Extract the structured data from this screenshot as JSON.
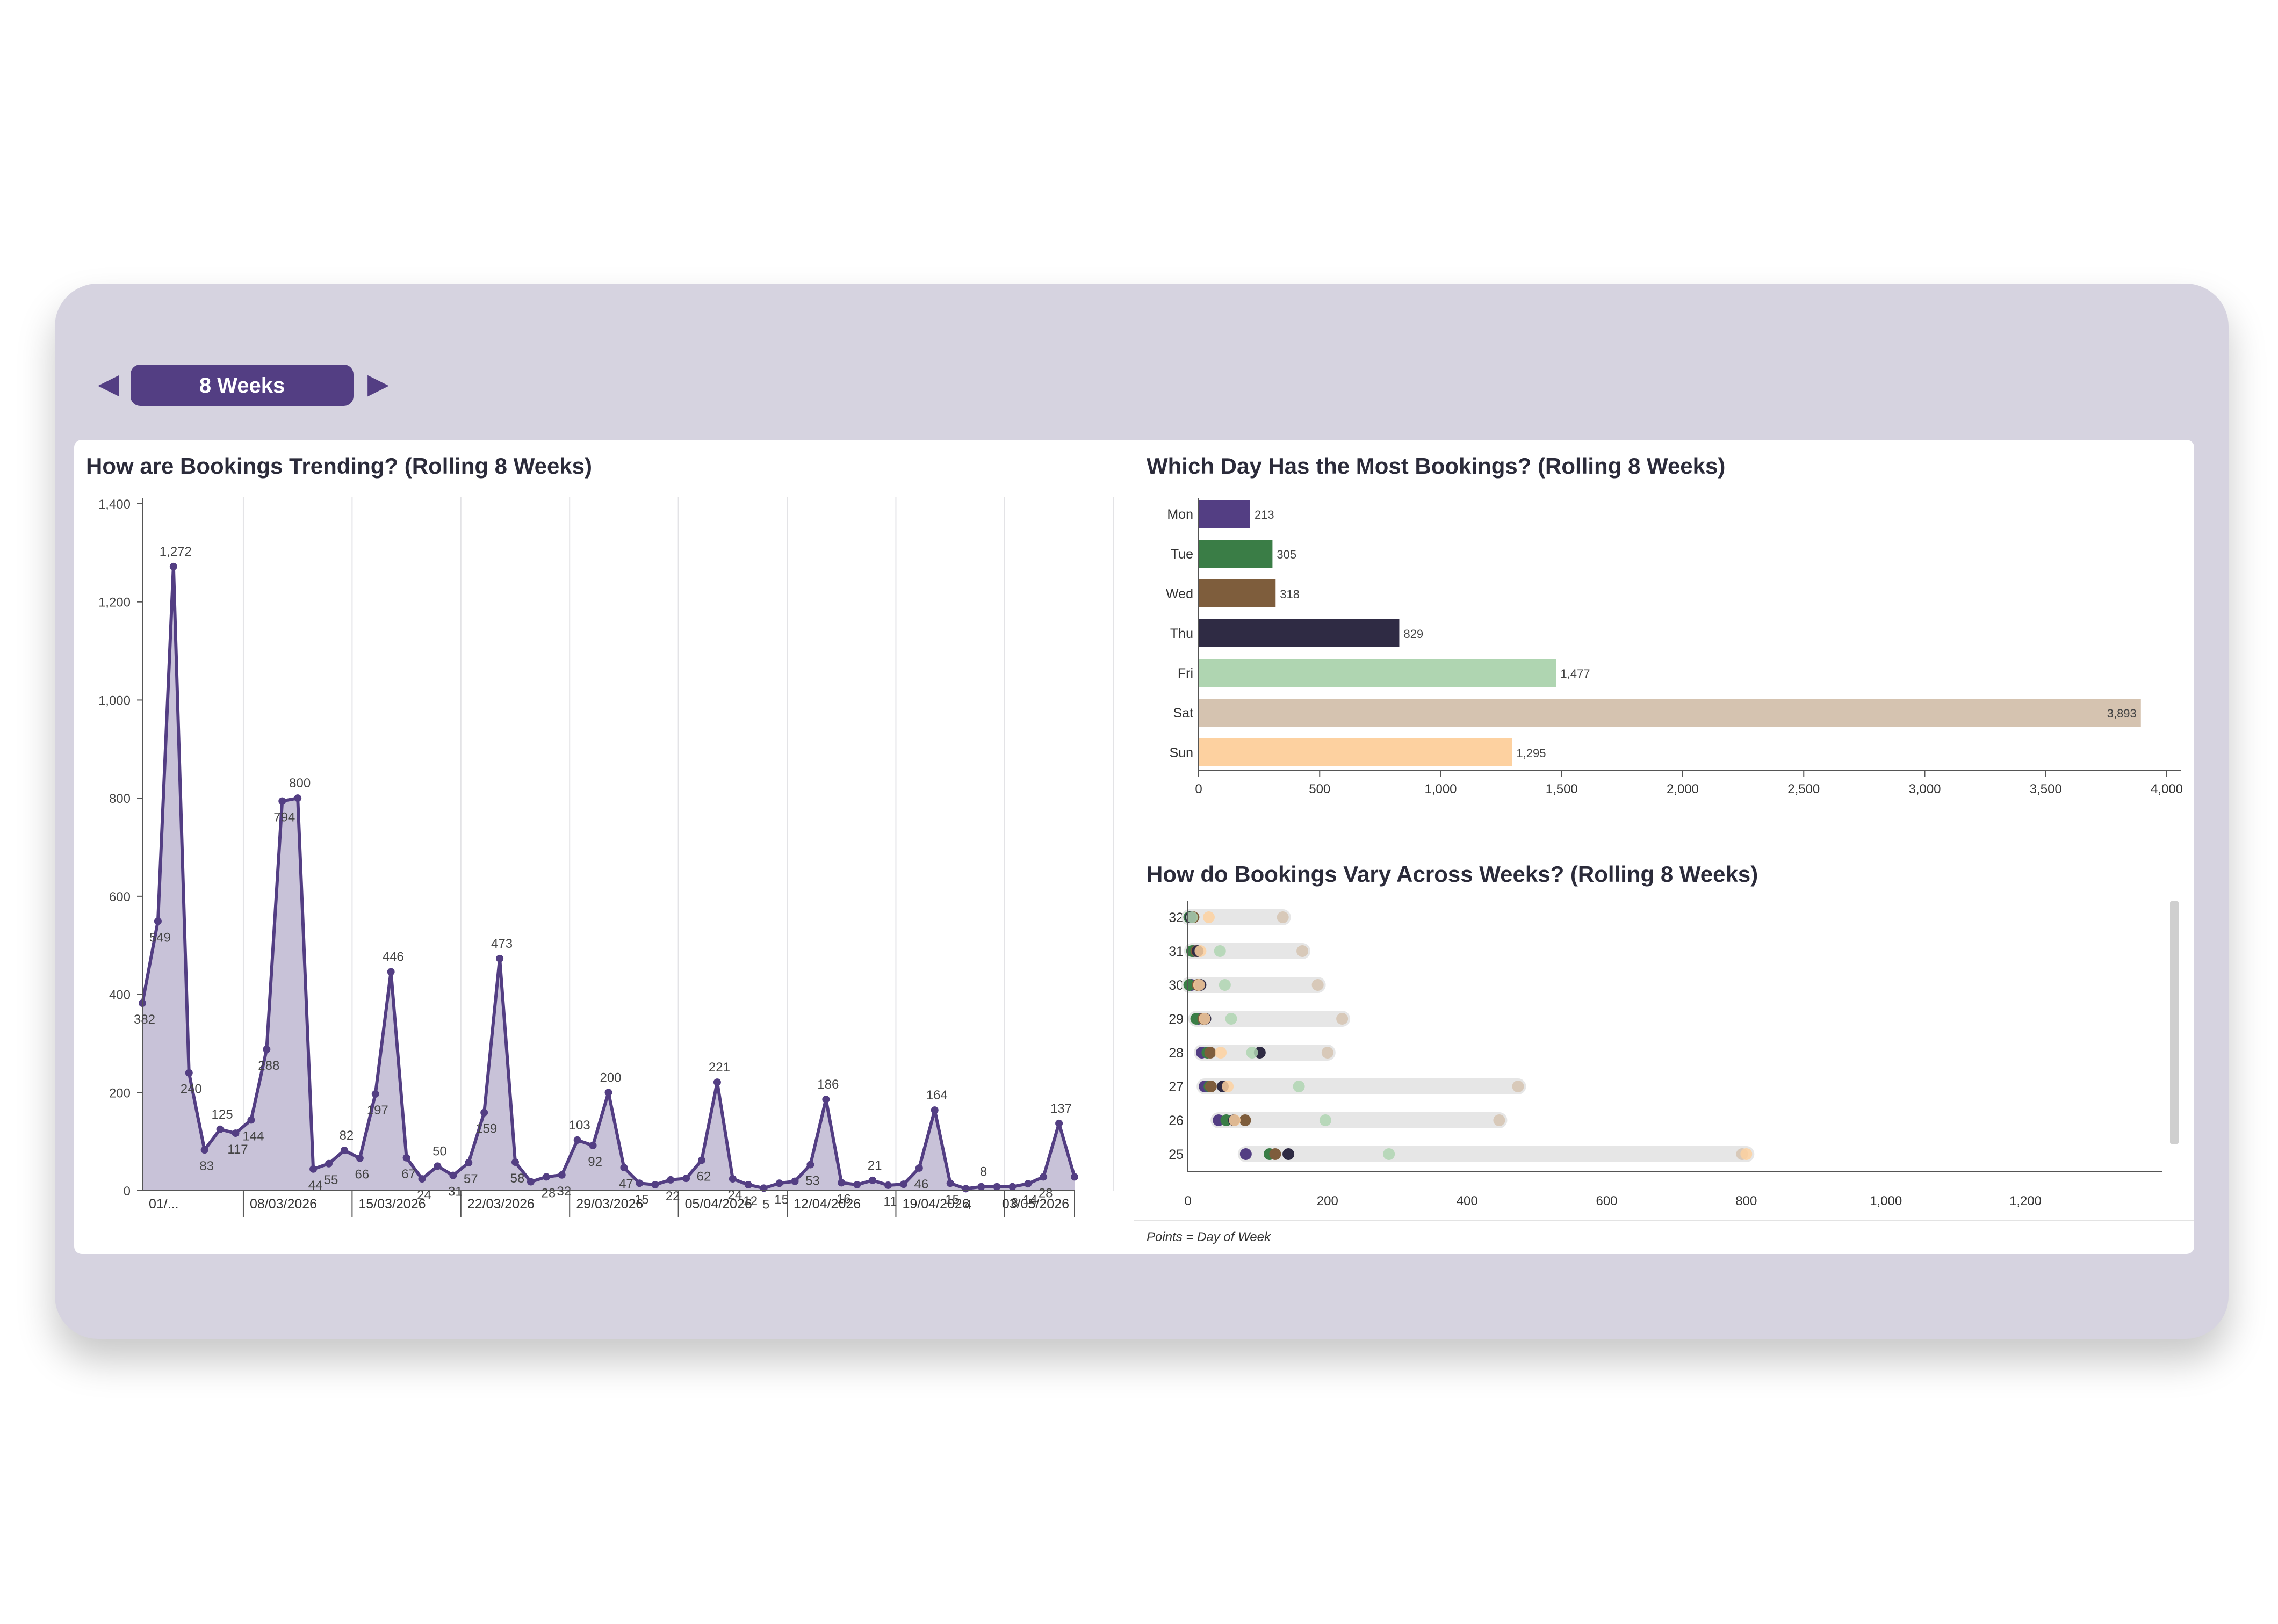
{
  "controls": {
    "prev_icon": "◀",
    "next_icon": "▶",
    "period_label": "8 Weeks"
  },
  "colors": {
    "accent": "#533e83",
    "panel_bg": "#d6d3e0",
    "days": {
      "Mon": "#533e83",
      "Tue": "#3a7d46",
      "Wed": "#7e5d3c",
      "Thu": "#2f2b44",
      "Fri": "#afd5b1",
      "Sat": "#d5c3b0",
      "Sun": "#fdd1a0"
    }
  },
  "footer_note": "Points = Day of Week",
  "chart_data": [
    {
      "type": "area",
      "title": "How are Bookings Trending? (Rolling 8 Weeks)",
      "ylim": [
        0,
        1400
      ],
      "y_ticks": [
        0,
        200,
        400,
        600,
        800,
        1000,
        1200,
        1400
      ],
      "y_tick_labels": [
        "0",
        "200",
        "400",
        "600",
        "800",
        "1,000",
        "1,200",
        "1,400"
      ],
      "x_start": "2026-03-01",
      "x_tick_labels": [
        "01/...",
        "08/03/2026",
        "15/03/2026",
        "22/03/2026",
        "29/03/2026",
        "05/04/2026",
        "12/04/2026",
        "19/04/2026",
        "03/05/2026"
      ],
      "x_tick_dates": [
        "2026-03-01",
        "2026-03-08",
        "2026-03-15",
        "2026-03-22",
        "2026-03-29",
        "2026-04-05",
        "2026-04-12",
        "2026-04-19",
        "2026-05-03"
      ],
      "values": [
        382,
        549,
        1272,
        240,
        83,
        125,
        117,
        144,
        288,
        794,
        800,
        44,
        55,
        82,
        66,
        197,
        446,
        67,
        24,
        50,
        31,
        57,
        159,
        473,
        58,
        18,
        28,
        32,
        103,
        92,
        200,
        47,
        15,
        12,
        22,
        25,
        62,
        221,
        24,
        12,
        5,
        15,
        19,
        53,
        186,
        16,
        12,
        21,
        11,
        13,
        46,
        164,
        15,
        4,
        8,
        8,
        8,
        14,
        28,
        137,
        28
      ],
      "value_labels": [
        {
          "i": 0,
          "text": "382"
        },
        {
          "i": 1,
          "text": "549"
        },
        {
          "i": 2,
          "text": "1,272"
        },
        {
          "i": 3,
          "text": "240"
        },
        {
          "i": 4,
          "text": "83"
        },
        {
          "i": 5,
          "text": "125"
        },
        {
          "i": 6,
          "text": "117"
        },
        {
          "i": 7,
          "text": "144"
        },
        {
          "i": 8,
          "text": "288"
        },
        {
          "i": 9,
          "text": "794"
        },
        {
          "i": 10,
          "text": "800"
        },
        {
          "i": 11,
          "text": "44"
        },
        {
          "i": 12,
          "text": "55"
        },
        {
          "i": 13,
          "text": "82"
        },
        {
          "i": 14,
          "text": "66"
        },
        {
          "i": 15,
          "text": "197"
        },
        {
          "i": 16,
          "text": "446"
        },
        {
          "i": 17,
          "text": "67"
        },
        {
          "i": 18,
          "text": "24"
        },
        {
          "i": 19,
          "text": "50"
        },
        {
          "i": 20,
          "text": "31"
        },
        {
          "i": 21,
          "text": "57"
        },
        {
          "i": 22,
          "text": "159"
        },
        {
          "i": 23,
          "text": "473"
        },
        {
          "i": 24,
          "text": "58"
        },
        {
          "i": 26,
          "text": "28"
        },
        {
          "i": 27,
          "text": "32"
        },
        {
          "i": 28,
          "text": "103"
        },
        {
          "i": 29,
          "text": "92"
        },
        {
          "i": 30,
          "text": "200"
        },
        {
          "i": 31,
          "text": "47"
        },
        {
          "i": 32,
          "text": "15"
        },
        {
          "i": 34,
          "text": "22"
        },
        {
          "i": 36,
          "text": "62"
        },
        {
          "i": 37,
          "text": "221"
        },
        {
          "i": 38,
          "text": "24"
        },
        {
          "i": 39,
          "text": "12"
        },
        {
          "i": 40,
          "text": "5"
        },
        {
          "i": 41,
          "text": "15"
        },
        {
          "i": 43,
          "text": "53"
        },
        {
          "i": 44,
          "text": "186"
        },
        {
          "i": 45,
          "text": "16"
        },
        {
          "i": 47,
          "text": "21"
        },
        {
          "i": 48,
          "text": "11"
        },
        {
          "i": 50,
          "text": "46"
        },
        {
          "i": 51,
          "text": "164"
        },
        {
          "i": 52,
          "text": "15"
        },
        {
          "i": 53,
          "text": "4"
        },
        {
          "i": 54,
          "text": "8"
        },
        {
          "i": 56,
          "text": "8"
        },
        {
          "i": 57,
          "text": "14"
        },
        {
          "i": 58,
          "text": "28"
        },
        {
          "i": 59,
          "text": "137"
        }
      ]
    },
    {
      "type": "bar",
      "orientation": "horizontal",
      "title": "Which Day Has the Most Bookings? (Rolling 8 Weeks)",
      "categories": [
        "Mon",
        "Tue",
        "Wed",
        "Thu",
        "Fri",
        "Sat",
        "Sun"
      ],
      "values": [
        213,
        305,
        318,
        829,
        1477,
        3893,
        1295
      ],
      "value_labels": [
        "213",
        "305",
        "318",
        "829",
        "1,477",
        "3,893",
        "1,295"
      ],
      "xlim": [
        0,
        4000
      ],
      "x_ticks": [
        0,
        500,
        1000,
        1500,
        2000,
        2500,
        3000,
        3500,
        4000
      ],
      "x_tick_labels": [
        "0",
        "500",
        "1,000",
        "1,500",
        "2,000",
        "2,500",
        "3,000",
        "3,500",
        "4,000"
      ]
    },
    {
      "type": "scatter",
      "title": "How do Bookings Vary Across Weeks? (Rolling 8 Weeks)",
      "xlim": [
        0,
        1400
      ],
      "x_ticks": [
        0,
        200,
        400,
        600,
        800,
        1000,
        1200
      ],
      "x_tick_labels": [
        "0",
        "200",
        "400",
        "600",
        "800",
        "1,000",
        "1,200"
      ],
      "weeks": [
        {
          "week": "32",
          "Mon": 5,
          "Tue": 2,
          "Wed": 8,
          "Thu": 4,
          "Fri": 6,
          "Sat": 136,
          "Sun": 30
        },
        {
          "week": "31",
          "Mon": 8,
          "Tue": 6,
          "Wed": 12,
          "Thu": 14,
          "Fri": 46,
          "Sat": 164,
          "Sun": 18
        },
        {
          "week": "30",
          "Mon": 5,
          "Tue": 2,
          "Wed": 14,
          "Thu": 18,
          "Fri": 53,
          "Sat": 186,
          "Sun": 16
        },
        {
          "week": "29",
          "Mon": 15,
          "Tue": 12,
          "Wed": 22,
          "Thu": 25,
          "Fri": 62,
          "Sat": 221,
          "Sun": 24
        },
        {
          "week": "28",
          "Mon": 20,
          "Tue": 28,
          "Wed": 32,
          "Thu": 103,
          "Fri": 92,
          "Sat": 200,
          "Sun": 47
        },
        {
          "week": "27",
          "Mon": 24,
          "Tue": 31,
          "Wed": 33,
          "Thu": 50,
          "Fri": 159,
          "Sat": 473,
          "Sun": 57
        },
        {
          "week": "26",
          "Mon": 44,
          "Tue": 55,
          "Wed": 82,
          "Thu": 66,
          "Fri": 197,
          "Sat": 446,
          "Sun": 67
        },
        {
          "week": "25",
          "Mon": 83,
          "Tue": 117,
          "Wed": 125,
          "Thu": 144,
          "Fri": 288,
          "Sat": 794,
          "Sun": 800
        }
      ]
    }
  ]
}
